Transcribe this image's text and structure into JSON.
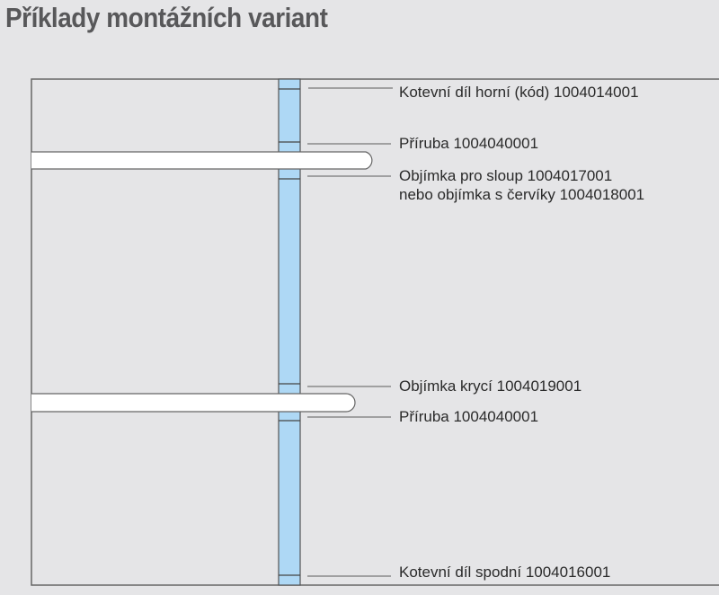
{
  "title": "Příklady montážních variant",
  "labels": [
    {
      "lines": [
        "Kotevní díl horní (kód) 1004014001"
      ]
    },
    {
      "lines": [
        "Příruba 1004040001"
      ]
    },
    {
      "lines": [
        "Objímka pro sloup 1004017001",
        "nebo objímka s červíky 1004018001"
      ]
    },
    {
      "lines": [
        "Objímka krycí 1004019001"
      ]
    },
    {
      "lines": [
        "Příruba 1004040001"
      ]
    },
    {
      "lines": [
        "Kotevní díl spodní 1004016001"
      ]
    }
  ],
  "colors": {
    "pole": "#aed8f5",
    "background": "#e5e5e7",
    "bar": "#ffffff"
  }
}
